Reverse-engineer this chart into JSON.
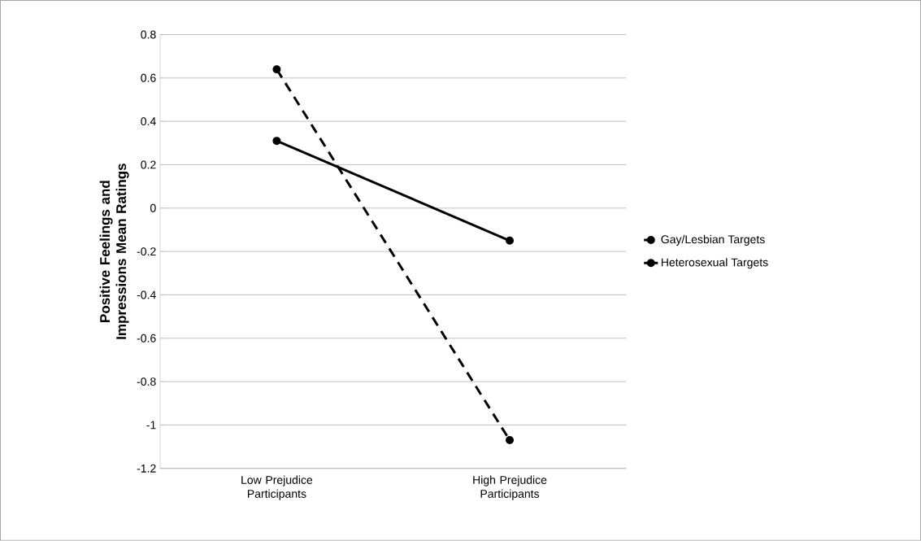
{
  "chart_data": {
    "type": "line",
    "ylabel": "Positive Feelings and Impressions Mean Ratings",
    "categories": [
      "Low Prejudice Participants",
      "High Prejudice Participants"
    ],
    "series": [
      {
        "name": "Gay/Lesbian Targets",
        "color": "#000000",
        "line_style": "dashed",
        "values": [
          0.64,
          -1.07
        ]
      },
      {
        "name": "Heterosexual Targets",
        "color": "#000000",
        "line_style": "solid",
        "values": [
          0.31,
          -0.15
        ]
      }
    ],
    "ylim": [
      -1.2,
      0.8
    ],
    "yticks": [
      -1.2,
      -1,
      -0.8,
      -0.6,
      -0.4,
      -0.2,
      0,
      0.2,
      0.4,
      0.6,
      0.8
    ],
    "grid": "y",
    "legend": "right",
    "marker": "circle"
  }
}
